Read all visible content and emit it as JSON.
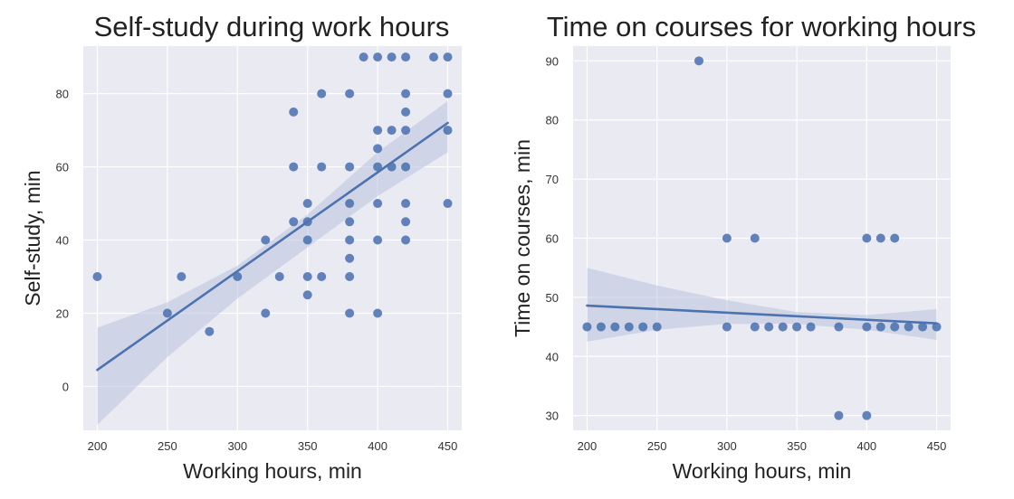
{
  "chart_data": [
    {
      "type": "scatter",
      "title": "Self-study during work hours",
      "xlabel": "Working hours, min",
      "ylabel": "Self-study, min",
      "xlim": [
        190,
        460
      ],
      "ylim": [
        -12,
        93
      ],
      "xticks": [
        200,
        250,
        300,
        350,
        400,
        450
      ],
      "yticks": [
        0,
        20,
        40,
        60,
        80
      ],
      "grid": true,
      "colors": {
        "background": "#eaeaf2",
        "points": "#4c72b0",
        "line": "#4c72b0",
        "ci": "#b8c3df"
      },
      "points": [
        [
          200,
          30
        ],
        [
          250,
          20
        ],
        [
          260,
          30
        ],
        [
          280,
          15
        ],
        [
          300,
          30
        ],
        [
          320,
          20
        ],
        [
          320,
          40
        ],
        [
          330,
          30
        ],
        [
          340,
          45
        ],
        [
          340,
          60
        ],
        [
          340,
          75
        ],
        [
          350,
          25
        ],
        [
          350,
          30
        ],
        [
          350,
          40
        ],
        [
          350,
          45
        ],
        [
          350,
          50
        ],
        [
          360,
          30
        ],
        [
          360,
          60
        ],
        [
          360,
          80
        ],
        [
          380,
          20
        ],
        [
          380,
          30
        ],
        [
          380,
          35
        ],
        [
          380,
          40
        ],
        [
          380,
          45
        ],
        [
          380,
          50
        ],
        [
          380,
          60
        ],
        [
          380,
          80
        ],
        [
          390,
          90
        ],
        [
          400,
          20
        ],
        [
          400,
          40
        ],
        [
          400,
          50
        ],
        [
          400,
          60
        ],
        [
          400,
          65
        ],
        [
          400,
          70
        ],
        [
          400,
          90
        ],
        [
          410,
          60
        ],
        [
          410,
          70
        ],
        [
          410,
          90
        ],
        [
          420,
          40
        ],
        [
          420,
          45
        ],
        [
          420,
          50
        ],
        [
          420,
          60
        ],
        [
          420,
          70
        ],
        [
          420,
          75
        ],
        [
          420,
          80
        ],
        [
          420,
          90
        ],
        [
          440,
          90
        ],
        [
          450,
          50
        ],
        [
          450,
          70
        ],
        [
          450,
          80
        ],
        [
          450,
          90
        ]
      ],
      "regression": {
        "x": [
          200,
          450
        ],
        "y": [
          4.5,
          72
        ]
      },
      "ci_band": {
        "x": [
          200,
          250,
          300,
          350,
          400,
          450
        ],
        "lower": [
          -10.5,
          8,
          24,
          38,
          52,
          64
        ],
        "upper": [
          16,
          23,
          33,
          47,
          64,
          78
        ]
      }
    },
    {
      "type": "scatter",
      "title": "Time on courses for working hours",
      "xlabel": "Working hours, min",
      "ylabel": "Time on courses, min",
      "xlim": [
        190,
        460
      ],
      "ylim": [
        27.5,
        92.5
      ],
      "xticks": [
        200,
        250,
        300,
        350,
        400,
        450
      ],
      "yticks": [
        30,
        40,
        50,
        60,
        70,
        80,
        90
      ],
      "grid": true,
      "colors": {
        "background": "#eaeaf2",
        "points": "#4c72b0",
        "line": "#4c72b0",
        "ci": "#b8c3df"
      },
      "points": [
        [
          200,
          45
        ],
        [
          210,
          45
        ],
        [
          220,
          45
        ],
        [
          230,
          45
        ],
        [
          240,
          45
        ],
        [
          250,
          45
        ],
        [
          280,
          90
        ],
        [
          300,
          45
        ],
        [
          300,
          60
        ],
        [
          320,
          45
        ],
        [
          320,
          60
        ],
        [
          330,
          45
        ],
        [
          340,
          45
        ],
        [
          350,
          45
        ],
        [
          360,
          45
        ],
        [
          380,
          30
        ],
        [
          380,
          45
        ],
        [
          400,
          30
        ],
        [
          400,
          45
        ],
        [
          400,
          60
        ],
        [
          410,
          45
        ],
        [
          410,
          60
        ],
        [
          420,
          45
        ],
        [
          420,
          60
        ],
        [
          430,
          45
        ],
        [
          440,
          45
        ],
        [
          450,
          45
        ]
      ],
      "regression": {
        "x": [
          200,
          450
        ],
        "y": [
          48.6,
          45.6
        ]
      },
      "ci_band": {
        "x": [
          200,
          250,
          300,
          350,
          400,
          450
        ],
        "lower": [
          42.5,
          44.5,
          45.5,
          45.5,
          44.5,
          42.8
        ],
        "upper": [
          55,
          52,
          49.5,
          47.5,
          47,
          48
        ]
      }
    }
  ]
}
